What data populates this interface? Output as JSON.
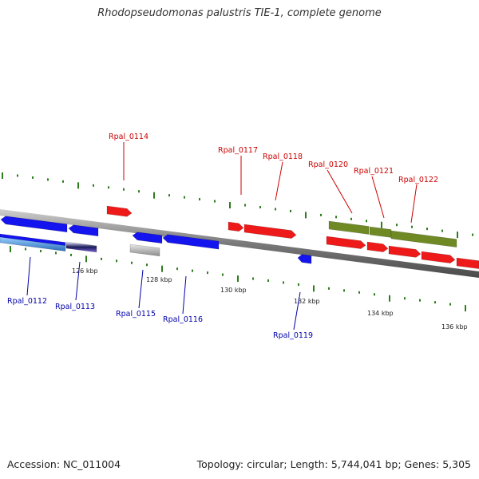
{
  "title": "Rhodopseudomonas palustris TIE-1, complete genome",
  "accession": "Accession: NC_011004",
  "topology": "Topology: circular; Length: 5,744,041 bp; Genes: 5,305",
  "colors": {
    "cds_forward": "#ee1a1a",
    "cds_reverse": "#1414ee",
    "operon": "#6f8a25",
    "rna": "#8a8a8a",
    "upper_label": "#cc0000",
    "lower_label": "#0000aa",
    "backbone": "#8a8a8a",
    "ticks": "#2e7d1e"
  },
  "scale_labels": [
    "126 kbp",
    "128 kbp",
    "130 kbp",
    "132 kbp",
    "134 kbp",
    "136 kbp"
  ],
  "genes_upper": [
    "Rpal_0114",
    "Rpal_0117",
    "Rpal_0118",
    "Rpal_0120",
    "Rpal_0121",
    "Rpal_0122"
  ],
  "genes_lower": [
    "Rpal_0112",
    "Rpal_0113",
    "Rpal_0115",
    "Rpal_0116",
    "Rpal_0119"
  ]
}
